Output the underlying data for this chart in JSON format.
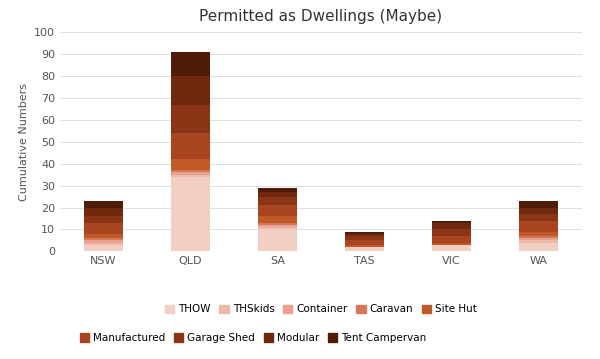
{
  "title": "Permitted as Dwellings (Maybe)",
  "ylabel": "Cumulative Numbers",
  "states": [
    "NSW",
    "QLD",
    "SA",
    "TAS",
    "VIC",
    "WA"
  ],
  "categories": [
    "THOW",
    "THSkids",
    "Container",
    "Caravan",
    "Site Hut",
    "Manufactured",
    "Garage Shed",
    "Modular",
    "Tent Campervan"
  ],
  "colors": [
    "#f2cfc4",
    "#edbaaa",
    "#e8a090",
    "#d4785a",
    "#c05828",
    "#a84520",
    "#8a3515",
    "#6e280e",
    "#4e1c08"
  ],
  "data": {
    "NSW": [
      3,
      1,
      1,
      1,
      2,
      5,
      3,
      4,
      3
    ],
    "QLD": [
      34,
      1,
      1,
      1,
      5,
      12,
      13,
      13,
      11
    ],
    "SA": [
      10,
      1,
      1,
      1,
      3,
      5,
      4,
      2,
      2
    ],
    "TAS": [
      2,
      0,
      0,
      0,
      1,
      2,
      2,
      1,
      1
    ],
    "VIC": [
      3,
      0,
      0,
      0,
      1,
      3,
      3,
      3,
      1
    ],
    "WA": [
      4,
      1,
      1,
      1,
      2,
      5,
      3,
      3,
      3
    ]
  },
  "ylim": [
    0,
    100
  ],
  "yticks": [
    0,
    10,
    20,
    30,
    40,
    50,
    60,
    70,
    80,
    90,
    100
  ],
  "background_color": "#ffffff",
  "figsize": [
    6.0,
    3.59
  ],
  "dpi": 100
}
